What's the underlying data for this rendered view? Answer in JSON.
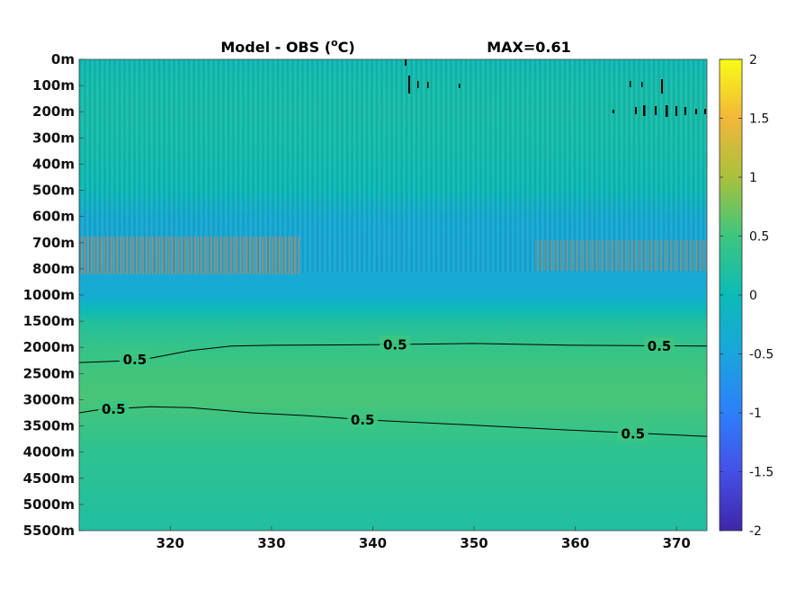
{
  "chart_data": {
    "type": "heatmap",
    "title": "Model - OBS (",
    "title_superscript": "o",
    "title_unit": "C)",
    "max_label": "MAX=0.61",
    "x": {
      "min": 311,
      "max": 373,
      "ticks": [
        320,
        330,
        340,
        350,
        360,
        370
      ],
      "tick_labels": [
        "320",
        "330",
        "340",
        "350",
        "360",
        "370"
      ]
    },
    "y": {
      "scale": "categorical-depth",
      "tick_labels": [
        "0m",
        "100m",
        "200m",
        "300m",
        "400m",
        "500m",
        "600m",
        "700m",
        "800m",
        "1000m",
        "1500m",
        "2000m",
        "2500m",
        "3000m",
        "3500m",
        "4000m",
        "4500m",
        "5000m",
        "5500m"
      ]
    },
    "colorbar": {
      "min": -2,
      "max": 2,
      "ticks": [
        2,
        1.5,
        1,
        0.5,
        0,
        -0.5,
        -1,
        -1.5,
        -2
      ],
      "tick_labels": [
        "2",
        "1.5",
        "1",
        "0.5",
        "0",
        "-0.5",
        "-1",
        "-1.5",
        "-2"
      ],
      "colormap": "parula"
    },
    "depth_profile": [
      {
        "level": 0,
        "value": 0.02
      },
      {
        "level": 1,
        "value": 0.1
      },
      {
        "level": 2,
        "value": 0.12
      },
      {
        "level": 3,
        "value": 0.1
      },
      {
        "level": 4,
        "value": 0.05
      },
      {
        "level": 5,
        "value": -0.02
      },
      {
        "level": 6,
        "value": -0.38
      },
      {
        "level": 7,
        "value": -0.42
      },
      {
        "level": 8,
        "value": -0.4
      },
      {
        "level": 9,
        "value": -0.35
      },
      {
        "level": 9.6,
        "value": 0.0
      },
      {
        "level": 10,
        "value": 0.22
      },
      {
        "level": 11,
        "value": 0.42
      },
      {
        "level": 12,
        "value": 0.52
      },
      {
        "level": 13,
        "value": 0.55
      },
      {
        "level": 14,
        "value": 0.45
      },
      {
        "level": 15,
        "value": 0.35
      },
      {
        "level": 16,
        "value": 0.3
      },
      {
        "level": 17,
        "value": 0.25
      },
      {
        "level": 18,
        "value": 0.2
      }
    ],
    "contours": [
      {
        "level": 0.5,
        "points": [
          [
            311,
            11.58
          ],
          [
            315,
            11.52
          ],
          [
            318,
            11.42
          ],
          [
            322,
            11.12
          ],
          [
            326,
            10.95
          ],
          [
            330,
            10.92
          ],
          [
            340,
            10.9
          ],
          [
            350,
            10.85
          ],
          [
            360,
            10.92
          ],
          [
            373,
            10.95
          ]
        ],
        "labels": [
          {
            "x": 316.5,
            "y": 11.47,
            "text": "0.5"
          },
          {
            "x": 342.2,
            "y": 10.9,
            "text": "0.5"
          },
          {
            "x": 368.3,
            "y": 10.95,
            "text": "0.5"
          }
        ]
      },
      {
        "level": 0.5,
        "points": [
          [
            311,
            13.5
          ],
          [
            313,
            13.38
          ],
          [
            318,
            13.27
          ],
          [
            322,
            13.3
          ],
          [
            328,
            13.5
          ],
          [
            333,
            13.6
          ],
          [
            340,
            13.78
          ],
          [
            350,
            13.97
          ],
          [
            360,
            14.17
          ],
          [
            373,
            14.4
          ]
        ],
        "labels": [
          {
            "x": 314.4,
            "y": 13.36,
            "text": "0.5"
          },
          {
            "x": 339,
            "y": 13.78,
            "text": "0.5"
          },
          {
            "x": 365.7,
            "y": 14.3,
            "text": "0.5"
          }
        ]
      }
    ]
  }
}
